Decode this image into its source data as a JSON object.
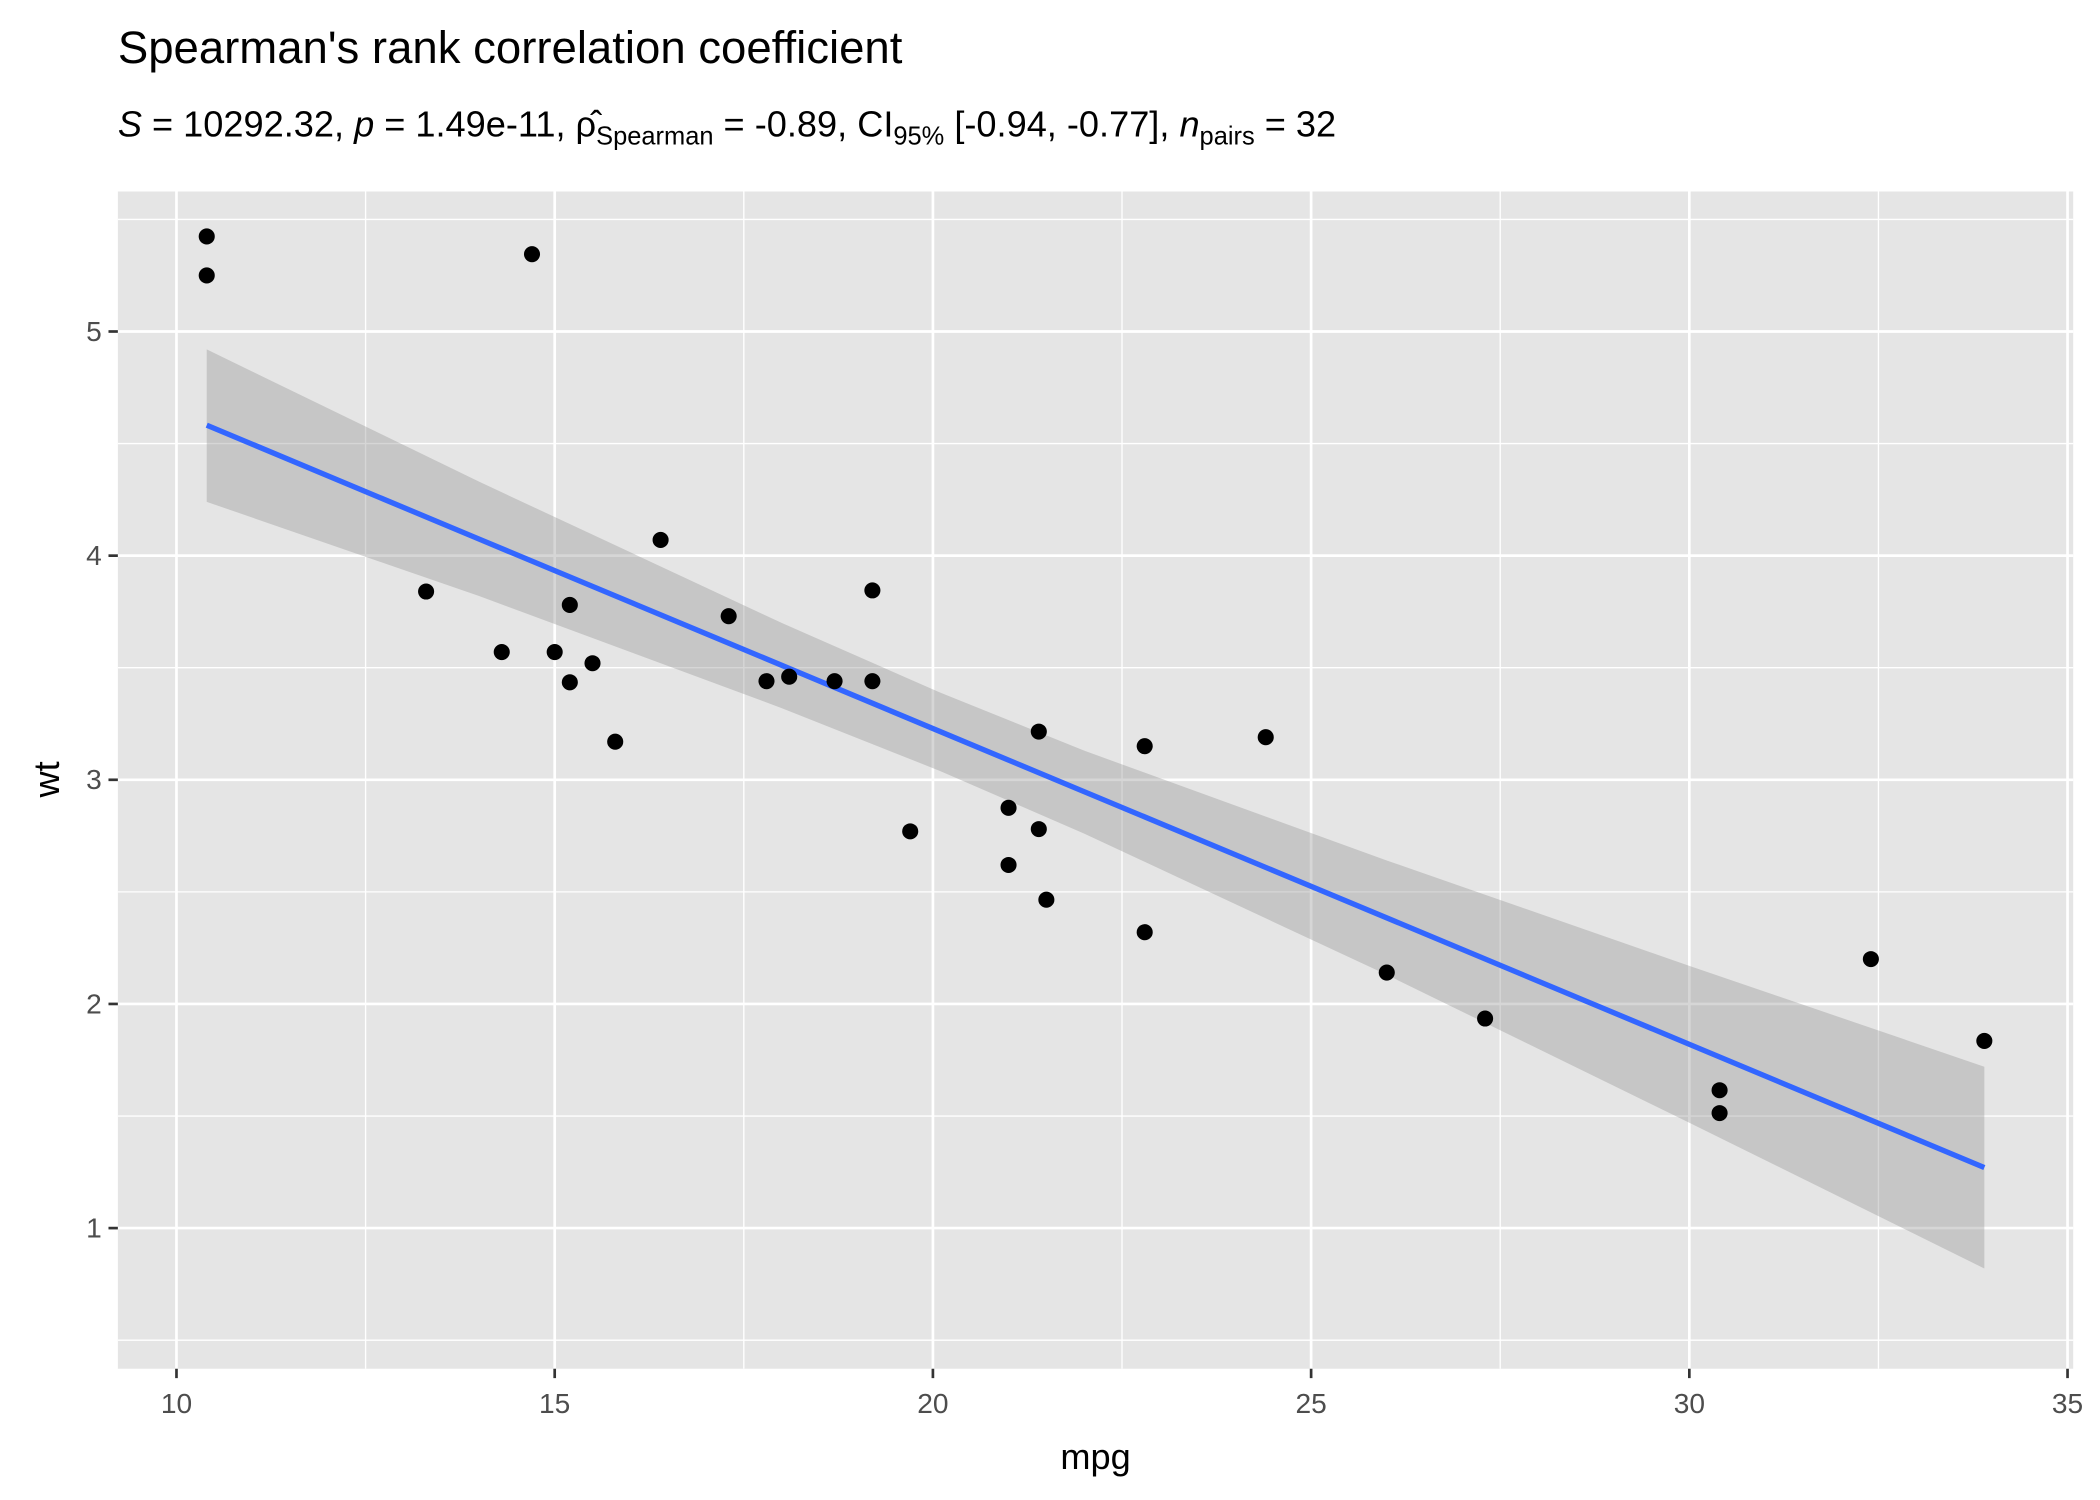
{
  "chart_data": {
    "type": "scatter",
    "title": "Spearman's rank correlation coefficient",
    "subtitle": {
      "s_label": "S",
      "s_value": " = 10292.32, ",
      "p_label": "p",
      "p_value": " = 1.49e-11, ",
      "rho_label": "ρ̂",
      "rho_sub": "Spearman",
      "rho_value": " = -0.89, CI",
      "ci_sub": "95%",
      "ci_value": " [-0.94, -0.77], ",
      "n_label": "n",
      "n_sub": "pairs",
      "n_value": " = 32"
    },
    "xlabel": "mpg",
    "ylabel": "wt",
    "xlim": [
      9.225,
      35.075
    ],
    "ylim": [
      0.3725,
      5.6245
    ],
    "xticks": [
      "10",
      "15",
      "20",
      "25",
      "30",
      "35"
    ],
    "yticks": [
      "1",
      "2",
      "3",
      "4",
      "5"
    ],
    "grid": true,
    "colors": {
      "panel": "#e5e5e5",
      "grid": "#ffffff",
      "points": "#000000",
      "line": "#3366ff",
      "band": "#bebebe"
    },
    "points": [
      [
        21.0,
        2.62
      ],
      [
        21.0,
        2.875
      ],
      [
        22.8,
        2.32
      ],
      [
        21.4,
        3.215
      ],
      [
        18.7,
        3.44
      ],
      [
        18.1,
        3.46
      ],
      [
        14.3,
        3.57
      ],
      [
        24.4,
        3.19
      ],
      [
        22.8,
        3.15
      ],
      [
        19.2,
        3.44
      ],
      [
        17.8,
        3.44
      ],
      [
        16.4,
        4.07
      ],
      [
        17.3,
        3.73
      ],
      [
        15.2,
        3.78
      ],
      [
        10.4,
        5.25
      ],
      [
        10.4,
        5.424
      ],
      [
        14.7,
        5.345
      ],
      [
        32.4,
        2.2
      ],
      [
        30.4,
        1.615
      ],
      [
        33.9,
        1.835
      ],
      [
        21.5,
        2.465
      ],
      [
        15.5,
        3.52
      ],
      [
        15.2,
        3.435
      ],
      [
        13.3,
        3.84
      ],
      [
        19.2,
        3.845
      ],
      [
        27.3,
        1.935
      ],
      [
        26.0,
        2.14
      ],
      [
        30.4,
        1.513
      ],
      [
        15.8,
        3.17
      ],
      [
        19.7,
        2.77
      ],
      [
        15.0,
        3.57
      ],
      [
        21.4,
        2.78
      ]
    ],
    "fit": {
      "x": [
        10.4,
        14,
        18,
        20.09,
        22,
        26,
        30,
        33.9
      ],
      "y": [
        4.582,
        4.074,
        3.511,
        3.216,
        2.947,
        2.384,
        1.82,
        1.27
      ],
      "lower": [
        4.24,
        3.82,
        3.32,
        3.04,
        2.76,
        2.13,
        1.47,
        0.82
      ],
      "upper": [
        4.92,
        4.33,
        3.7,
        3.39,
        3.13,
        2.64,
        2.17,
        1.72
      ]
    }
  }
}
